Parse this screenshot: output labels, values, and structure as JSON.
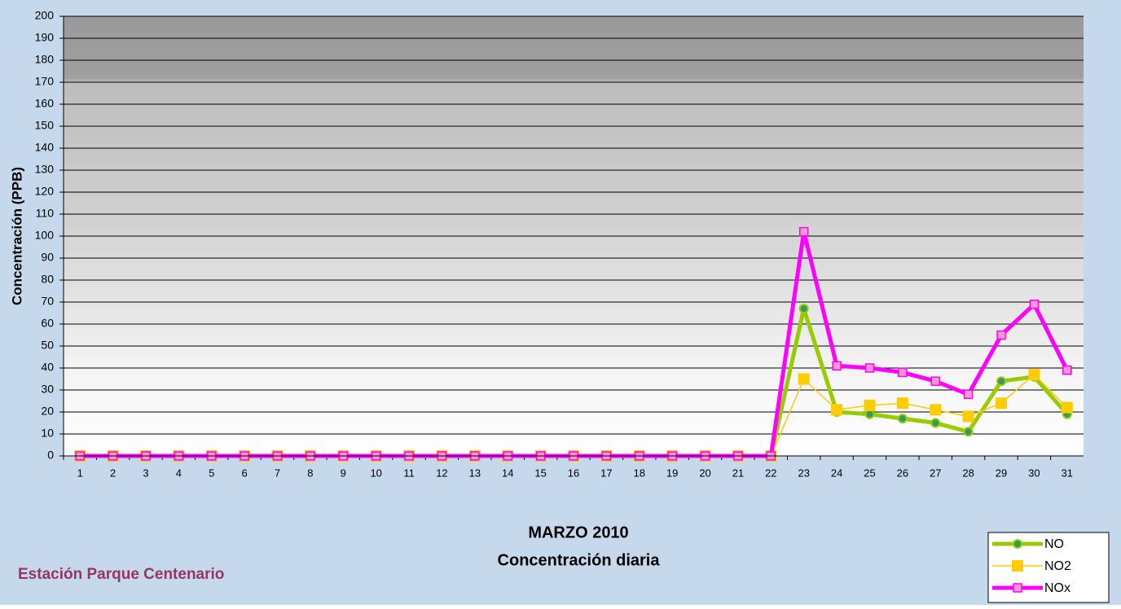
{
  "chart_data": {
    "type": "line",
    "y_label": "Concentración  (PPB)",
    "title": "MARZO 2010",
    "subtitle": "Concentración diaria",
    "station": "Estación Parque Centenario",
    "categories": [
      1,
      2,
      3,
      4,
      5,
      6,
      7,
      8,
      9,
      10,
      11,
      12,
      13,
      14,
      15,
      16,
      17,
      18,
      19,
      20,
      21,
      22,
      23,
      24,
      25,
      26,
      27,
      28,
      29,
      30,
      31
    ],
    "series": [
      {
        "name": "NO",
        "color": "#99cc00",
        "marker": "circle",
        "marker_fill": "#339966",
        "width": 5,
        "values": [
          0,
          0,
          0,
          0,
          0,
          0,
          0,
          0,
          0,
          0,
          0,
          0,
          0,
          0,
          0,
          0,
          0,
          0,
          0,
          0,
          0,
          0,
          67,
          20,
          19,
          17,
          15,
          11,
          34,
          36,
          19
        ]
      },
      {
        "name": "NO2",
        "color": "#ffcc00",
        "marker": "square",
        "marker_fill": "#ffcc00",
        "width": 1.5,
        "values": [
          0,
          0,
          0,
          0,
          0,
          0,
          0,
          0,
          0,
          0,
          0,
          0,
          0,
          0,
          0,
          0,
          0,
          0,
          0,
          0,
          0,
          0,
          35,
          21,
          23,
          24,
          21,
          18,
          24,
          37,
          22
        ]
      },
      {
        "name": "NOx",
        "color": "#ff00ff",
        "marker": "square",
        "marker_fill": "#ff99cc",
        "width": 5,
        "values": [
          0,
          0,
          0,
          0,
          0,
          0,
          0,
          0,
          0,
          0,
          0,
          0,
          0,
          0,
          0,
          0,
          0,
          0,
          0,
          0,
          0,
          0,
          102,
          41,
          40,
          38,
          34,
          28,
          55,
          69,
          39
        ]
      }
    ],
    "ylim": [
      0,
      200
    ],
    "yticks": [
      0,
      10,
      20,
      30,
      40,
      50,
      60,
      70,
      80,
      90,
      100,
      110,
      120,
      130,
      140,
      150,
      160,
      170,
      180,
      190,
      200
    ],
    "grid": true
  }
}
